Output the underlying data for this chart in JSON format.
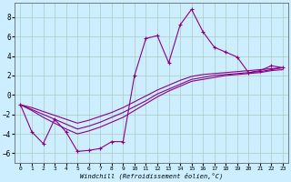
{
  "xlabel": "Windchill (Refroidissement éolien,°C)",
  "background_color": "#cceeff",
  "grid_color": "#aaccbb",
  "line_color": "#880088",
  "xlim": [
    -0.5,
    23.5
  ],
  "ylim": [
    -7,
    9.5
  ],
  "yticks": [
    -6,
    -4,
    -2,
    0,
    2,
    4,
    6,
    8
  ],
  "xticks": [
    0,
    1,
    2,
    3,
    4,
    5,
    6,
    7,
    8,
    9,
    10,
    11,
    12,
    13,
    14,
    15,
    16,
    17,
    18,
    19,
    20,
    21,
    22,
    23
  ],
  "series1_x": [
    0,
    1,
    2,
    3,
    4,
    5,
    6,
    7,
    8,
    9,
    10,
    11,
    12,
    13,
    14,
    15,
    16,
    17,
    18,
    19,
    20,
    21,
    22,
    23
  ],
  "series1_y": [
    -1,
    -3.8,
    -5,
    -2.5,
    -3.8,
    -5.8,
    -5.7,
    -5.5,
    -4.8,
    -4.8,
    2.0,
    5.8,
    6.1,
    3.3,
    7.2,
    8.8,
    6.5,
    4.9,
    4.4,
    3.9,
    2.3,
    2.5,
    3.0,
    2.8
  ],
  "smooth1_x": [
    0,
    1,
    2,
    3,
    4,
    5,
    6,
    7,
    8,
    9,
    10,
    11,
    12,
    13,
    14,
    15,
    16,
    17,
    18,
    19,
    20,
    21,
    22,
    23
  ],
  "smooth1_y": [
    -1,
    -1.5,
    -2.0,
    -2.5,
    -3.0,
    -3.5,
    -3.2,
    -2.8,
    -2.3,
    -1.8,
    -1.2,
    -0.6,
    0.1,
    0.6,
    1.1,
    1.6,
    1.8,
    2.0,
    2.1,
    2.2,
    2.3,
    2.4,
    2.6,
    2.8
  ],
  "smooth2_x": [
    0,
    1,
    2,
    3,
    4,
    5,
    6,
    7,
    8,
    9,
    10,
    11,
    12,
    13,
    14,
    15,
    16,
    17,
    18,
    19,
    20,
    21,
    22,
    23
  ],
  "smooth2_y": [
    -1,
    -1.6,
    -2.3,
    -2.9,
    -3.5,
    -4.0,
    -3.7,
    -3.3,
    -2.8,
    -2.3,
    -1.6,
    -0.9,
    -0.2,
    0.4,
    0.9,
    1.4,
    1.6,
    1.8,
    2.0,
    2.1,
    2.2,
    2.3,
    2.5,
    2.6
  ],
  "smooth3_x": [
    0,
    1,
    2,
    3,
    4,
    5,
    6,
    7,
    8,
    9,
    10,
    11,
    12,
    13,
    14,
    15,
    16,
    17,
    18,
    19,
    20,
    21,
    22,
    23
  ],
  "smooth3_y": [
    -1,
    -1.3,
    -1.7,
    -2.1,
    -2.5,
    -2.9,
    -2.6,
    -2.2,
    -1.8,
    -1.3,
    -0.7,
    -0.1,
    0.5,
    1.0,
    1.5,
    1.9,
    2.1,
    2.2,
    2.3,
    2.4,
    2.5,
    2.6,
    2.7,
    2.8
  ]
}
